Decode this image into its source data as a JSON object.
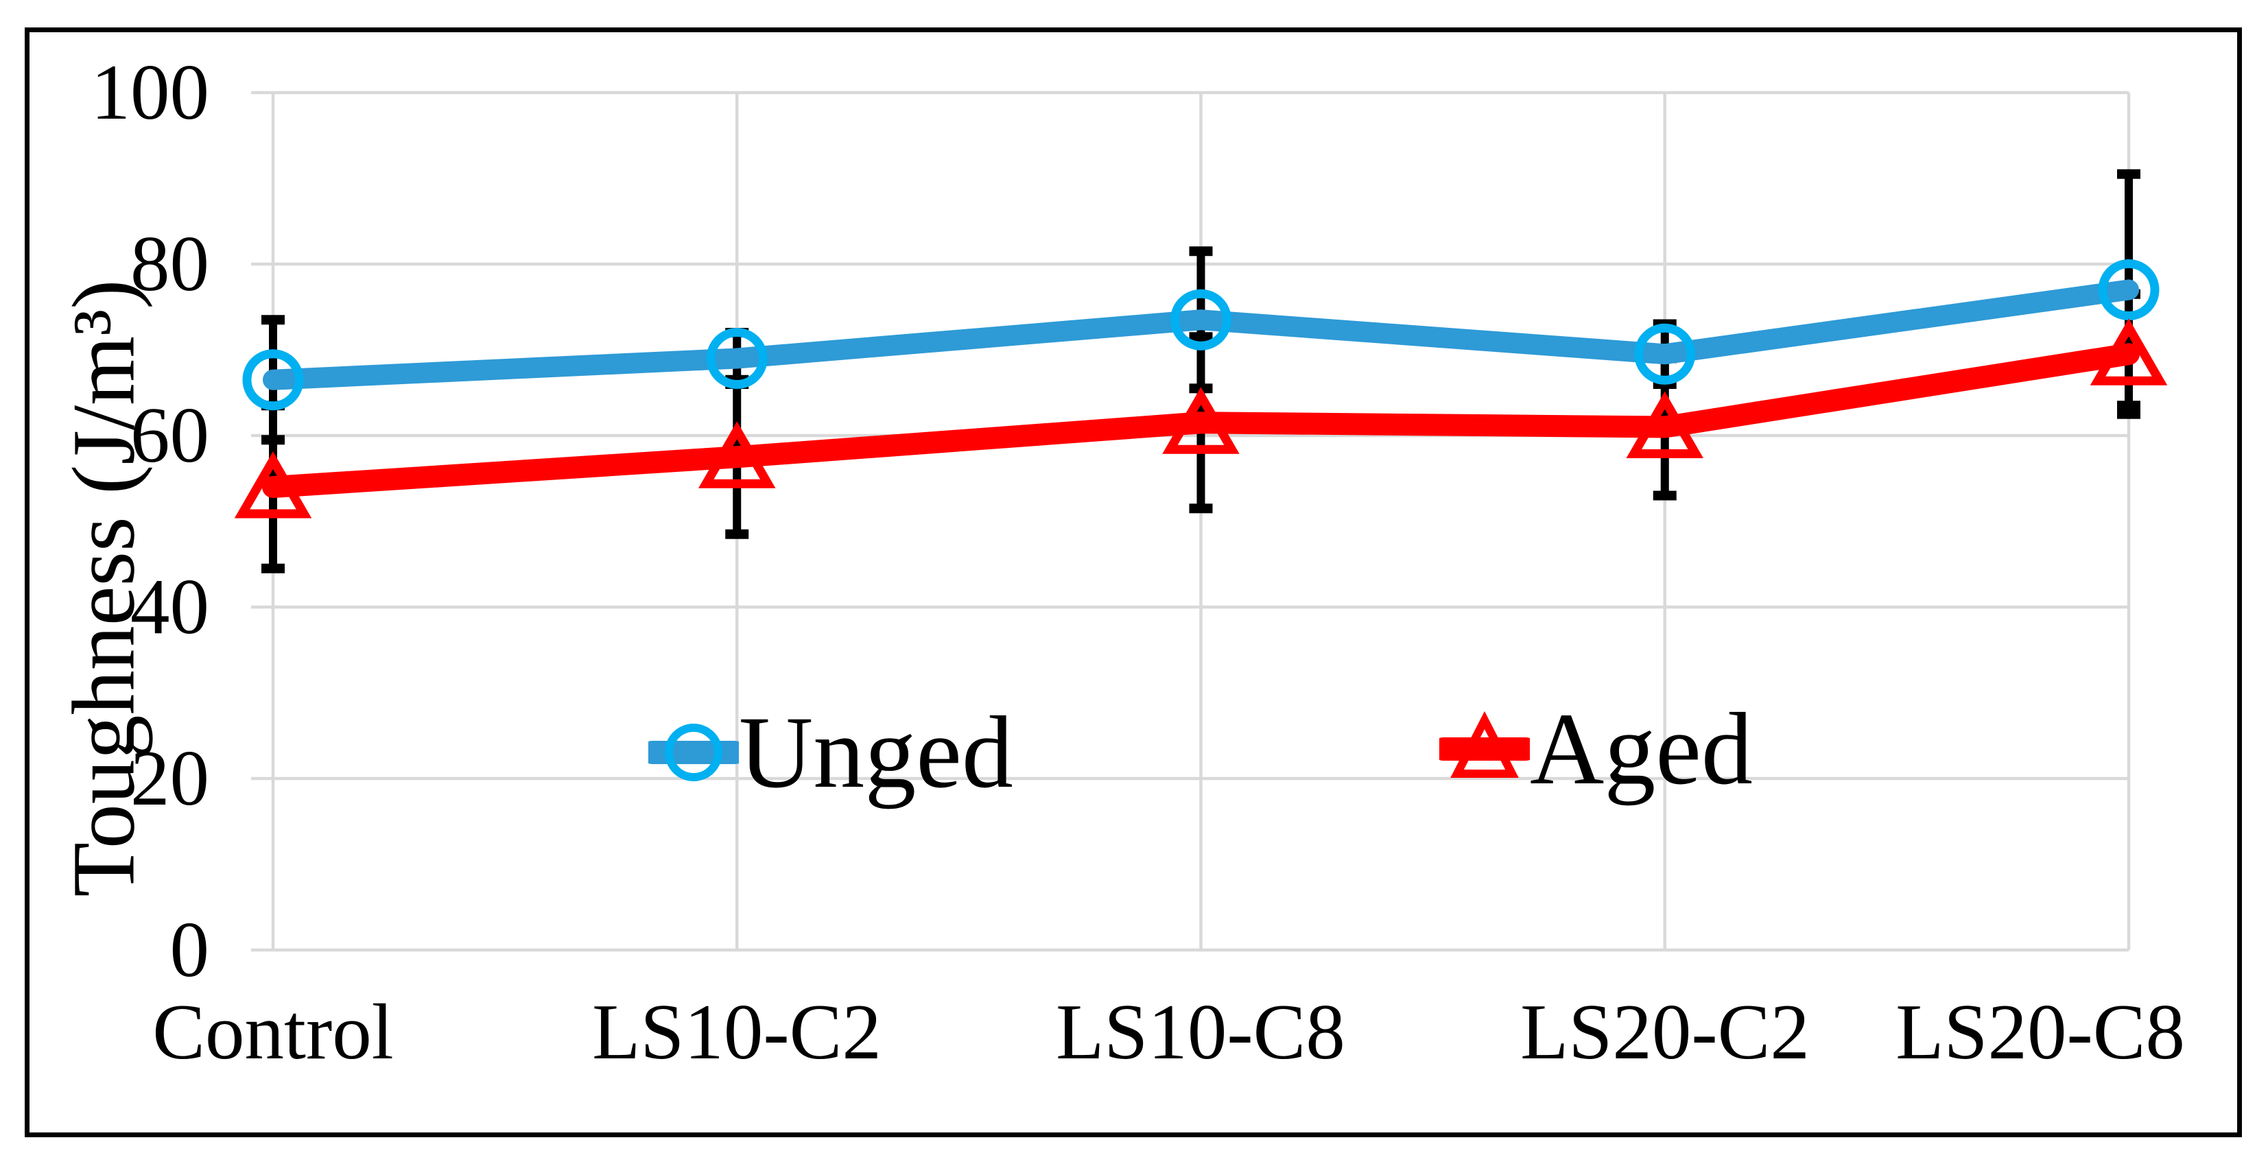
{
  "figure": {
    "background": "#FFFFFF",
    "border_color": "#000000"
  },
  "chart_data": {
    "type": "line",
    "title": "",
    "xlabel": "",
    "ylabel": "Toughness (J/m³)",
    "categories": [
      "Control",
      "LS10-C2",
      "LS10-C8",
      "LS20-C2",
      "LS20-C8"
    ],
    "ylim": [
      0,
      100
    ],
    "y_tick_step": 20,
    "y_ticks": [
      "0",
      "20",
      "40",
      "60",
      "80",
      "100"
    ],
    "grid": true,
    "gridline_color": "#D9D9D9",
    "error_bar_color": "#000000",
    "legend_position": "inside-center",
    "series": [
      {
        "name": "Unged",
        "color": "#2E9AD6",
        "marker": "circle",
        "marker_color": "#00B0F0",
        "values": [
          66.5,
          69,
          73.5,
          69.5,
          77
        ],
        "error": [
          7,
          3,
          8,
          3.5,
          13.5
        ]
      },
      {
        "name": "Aged",
        "color": "#FF0000",
        "marker": "triangle",
        "marker_color": "#FF0000",
        "values": [
          54,
          57.5,
          61.5,
          61,
          69.5
        ],
        "error": [
          9.5,
          9,
          10,
          8,
          7
        ]
      }
    ]
  }
}
